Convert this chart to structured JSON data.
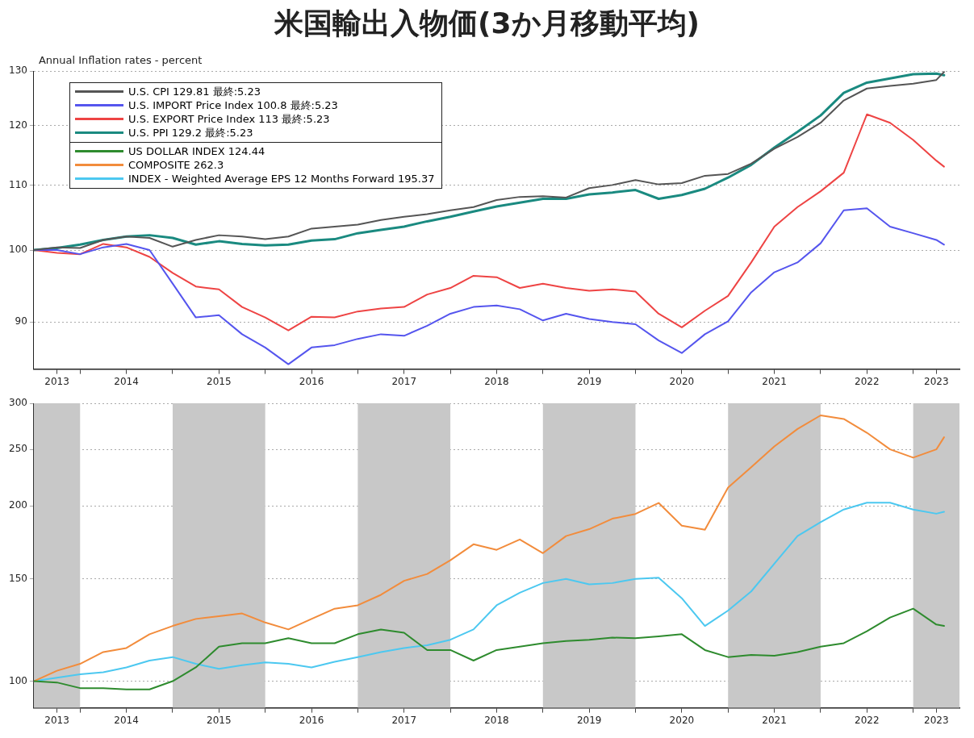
{
  "chart_data": [
    {
      "type": "line",
      "title": "米国輸出入物価(3か月移動平均)",
      "ylabel": "Annual Inflation rates - percent",
      "log": "y",
      "grid": "y",
      "legend": "top left",
      "marker": "none",
      "line_style": "solid",
      "x": [
        "2013-07",
        "2013-10",
        "2014-01",
        "2014-04",
        "2014-07",
        "2014-10",
        "2015-01",
        "2015-04",
        "2015-07",
        "2015-10",
        "2016-01",
        "2016-04",
        "2016-07",
        "2016-10",
        "2017-01",
        "2017-04",
        "2017-07",
        "2017-10",
        "2018-01",
        "2018-04",
        "2018-07",
        "2018-10",
        "2019-01",
        "2019-04",
        "2019-07",
        "2019-10",
        "2020-01",
        "2020-04",
        "2020-07",
        "2020-10",
        "2021-01",
        "2021-04",
        "2021-07",
        "2021-10",
        "2022-01",
        "2022-04",
        "2022-07",
        "2022-10",
        "2023-01",
        "2023-04",
        "2023-05"
      ],
      "xlim": [
        "2013-07",
        "2023-07"
      ],
      "xticks": [
        {
          "value": "2013-10",
          "label": "2013"
        },
        {
          "value": "2014-01",
          "label": null
        },
        {
          "value": "2014-07",
          "label": "2014"
        },
        {
          "value": "2015-01",
          "label": null
        },
        {
          "value": "2015-07",
          "label": "2015"
        },
        {
          "value": "2016-01",
          "label": null
        },
        {
          "value": "2016-07",
          "label": "2016"
        },
        {
          "value": "2017-01",
          "label": null
        },
        {
          "value": "2017-07",
          "label": "2017"
        },
        {
          "value": "2018-01",
          "label": null
        },
        {
          "value": "2018-07",
          "label": "2018"
        },
        {
          "value": "2019-01",
          "label": null
        },
        {
          "value": "2019-07",
          "label": "2019"
        },
        {
          "value": "2020-01",
          "label": null
        },
        {
          "value": "2020-07",
          "label": "2020"
        },
        {
          "value": "2021-01",
          "label": null
        },
        {
          "value": "2021-07",
          "label": "2021"
        },
        {
          "value": "2022-01",
          "label": null
        },
        {
          "value": "2022-07",
          "label": "2022"
        },
        {
          "value": "2023-01",
          "label": null
        },
        {
          "value": "2023-04",
          "label": "2023"
        }
      ],
      "ylim": [
        84,
        130
      ],
      "yticks": [
        90,
        100,
        110,
        120,
        130
      ],
      "series": [
        {
          "name": "U.S. CPI 129.81 最終:5.23",
          "color": "#555555",
          "values": [
            100,
            100.4,
            100.3,
            101.5,
            102.0,
            101.8,
            100.5,
            101.5,
            102.2,
            102.0,
            101.6,
            102.0,
            103.2,
            103.5,
            103.8,
            104.5,
            105.0,
            105.4,
            106.0,
            106.5,
            107.6,
            108.1,
            108.2,
            108.0,
            109.5,
            110.0,
            110.8,
            110.1,
            110.3,
            111.5,
            111.8,
            113.5,
            116.0,
            118.0,
            120.5,
            124.5,
            126.7,
            127.2,
            127.6,
            128.3,
            129.81
          ]
        },
        {
          "name": "U.S. IMPORT Price Index 100.8 最終:5.23",
          "color": "#5555ee",
          "values": [
            100,
            100,
            99.4,
            100.4,
            100.9,
            100,
            95.2,
            90.6,
            90.9,
            88.4,
            86.7,
            84.6,
            86.7,
            87.0,
            87.8,
            88.4,
            88.2,
            89.5,
            91.1,
            92.0,
            92.2,
            91.7,
            90.2,
            91.1,
            90.4,
            90.0,
            89.7,
            87.6,
            86.0,
            88.4,
            90.1,
            94.0,
            96.8,
            98.2,
            101,
            106,
            106.3,
            103.5,
            102.5,
            101.5,
            100.8
          ]
        },
        {
          "name": "U.S. EXPORT Price Index 113 最終:5.23",
          "color": "#ee4444",
          "values": [
            100,
            99.6,
            99.4,
            100.9,
            100.4,
            99.0,
            96.7,
            94.8,
            94.4,
            92.0,
            90.6,
            88.9,
            90.7,
            90.6,
            91.4,
            91.8,
            92.0,
            93.7,
            94.6,
            96.3,
            96.1,
            94.6,
            95.2,
            94.6,
            94.2,
            94.4,
            94.1,
            91.1,
            89.3,
            91.5,
            93.5,
            98.2,
            103.5,
            106.5,
            109,
            112,
            122,
            120.5,
            117.5,
            114,
            113
          ]
        },
        {
          "name": "U.S. PPI 129.2 最終:5.23",
          "color": "#1a8a80",
          "values": [
            100,
            100.3,
            100.8,
            101.5,
            102.0,
            102.2,
            101.8,
            100.8,
            101.3,
            100.9,
            100.7,
            100.8,
            101.4,
            101.6,
            102.5,
            103.0,
            103.5,
            104.3,
            105.0,
            105.8,
            106.6,
            107.2,
            107.8,
            107.8,
            108.5,
            108.8,
            109.2,
            107.8,
            108.4,
            109.4,
            111.2,
            113.3,
            116.2,
            118.9,
            121.8,
            125.9,
            127.8,
            128.6,
            129.4,
            129.5,
            129.2
          ]
        }
      ]
    },
    {
      "type": "line",
      "log": "y",
      "grid": "y",
      "legend": "top left",
      "marker": "none",
      "line_style": "solid",
      "x": [
        "2013-07",
        "2013-10",
        "2014-01",
        "2014-04",
        "2014-07",
        "2014-10",
        "2015-01",
        "2015-04",
        "2015-07",
        "2015-10",
        "2016-01",
        "2016-04",
        "2016-07",
        "2016-10",
        "2017-01",
        "2017-04",
        "2017-07",
        "2017-10",
        "2018-01",
        "2018-04",
        "2018-07",
        "2018-10",
        "2019-01",
        "2019-04",
        "2019-07",
        "2019-10",
        "2020-01",
        "2020-04",
        "2020-07",
        "2020-10",
        "2021-01",
        "2021-04",
        "2021-07",
        "2021-10",
        "2022-01",
        "2022-04",
        "2022-07",
        "2022-10",
        "2023-01",
        "2023-04",
        "2023-05"
      ],
      "xlim": [
        "2013-07",
        "2023-07"
      ],
      "xticks": [
        {
          "value": "2013-10",
          "label": "2013"
        },
        {
          "value": "2014-01",
          "label": null
        },
        {
          "value": "2014-07",
          "label": "2014"
        },
        {
          "value": "2015-01",
          "label": null
        },
        {
          "value": "2015-07",
          "label": "2015"
        },
        {
          "value": "2016-01",
          "label": null
        },
        {
          "value": "2016-07",
          "label": "2016"
        },
        {
          "value": "2017-01",
          "label": null
        },
        {
          "value": "2017-07",
          "label": "2017"
        },
        {
          "value": "2018-01",
          "label": null
        },
        {
          "value": "2018-07",
          "label": "2018"
        },
        {
          "value": "2019-01",
          "label": null
        },
        {
          "value": "2019-07",
          "label": "2019"
        },
        {
          "value": "2020-01",
          "label": null
        },
        {
          "value": "2020-07",
          "label": "2020"
        },
        {
          "value": "2021-01",
          "label": null
        },
        {
          "value": "2021-07",
          "label": "2021"
        },
        {
          "value": "2022-01",
          "label": null
        },
        {
          "value": "2022-07",
          "label": "2022"
        },
        {
          "value": "2023-01",
          "label": null
        },
        {
          "value": "2023-04",
          "label": "2023"
        }
      ],
      "ylim": [
        90,
        300
      ],
      "yticks": [
        100,
        150,
        200,
        250,
        300
      ],
      "bands": [
        {
          "axis": "x",
          "from": "2013-07",
          "to": "2014-01",
          "color": "#c8c8c8"
        },
        {
          "axis": "x",
          "from": "2015-01",
          "to": "2016-01",
          "color": "#c8c8c8"
        },
        {
          "axis": "x",
          "from": "2017-01",
          "to": "2018-01",
          "color": "#c8c8c8"
        },
        {
          "axis": "x",
          "from": "2019-01",
          "to": "2020-01",
          "color": "#c8c8c8"
        },
        {
          "axis": "x",
          "from": "2021-01",
          "to": "2022-01",
          "color": "#c8c8c8"
        },
        {
          "axis": "x",
          "from": "2023-01",
          "to": "2023-07",
          "color": "#c8c8c8"
        }
      ],
      "series": [
        {
          "name": "US DOLLAR INDEX 124.44",
          "color": "#2e8b2e",
          "values": [
            100,
            99.5,
            97.3,
            97.3,
            96.8,
            96.8,
            100,
            105.6,
            114.6,
            116.2,
            116.2,
            118.5,
            116.2,
            116.2,
            120.4,
            122.7,
            121.1,
            113.1,
            113.1,
            108.5,
            113.1,
            114.6,
            116.2,
            117.2,
            117.8,
            118.8,
            118.5,
            119.4,
            120.4,
            113.1,
            110.0,
            110.9,
            110.6,
            112.2,
            114.6,
            116.2,
            121.8,
            128.6,
            133.2,
            125.1,
            124.44
          ]
        },
        {
          "name": "COMPOSITE 262.3",
          "color": "#f28c3c",
          "values": [
            100,
            104.2,
            107.1,
            112.2,
            114.0,
            120.4,
            124.4,
            127.9,
            129.3,
            130.7,
            126.1,
            122.7,
            127.9,
            133.2,
            135.0,
            140.7,
            148.7,
            152.8,
            161.3,
            171.8,
            168.1,
            175.1,
            165.9,
            177.5,
            182.4,
            190.1,
            193.7,
            202.3,
            184.9,
            182,
            215,
            233,
            253,
            271,
            286,
            282,
            267,
            250,
            242,
            250,
            262.3
          ]
        },
        {
          "name": "INDEX - Weighted Average EPS 12 Months Forward 195.37",
          "color": "#4cc8f0",
          "values": [
            100,
            101.4,
            102.8,
            103.6,
            105.6,
            108.5,
            110.0,
            107.1,
            105.0,
            106.5,
            107.7,
            107.1,
            105.6,
            108.0,
            110.0,
            112.2,
            114.0,
            115.3,
            117.8,
            122.7,
            135.0,
            141.9,
            147.4,
            149.8,
            146.6,
            147.4,
            149.8,
            150.6,
            138.8,
            124.4,
            132.2,
            142.6,
            159.1,
            177.5,
            187.5,
            197.1,
            202.5,
            202.5,
            197.1,
            193.9,
            195.37
          ]
        }
      ]
    }
  ]
}
